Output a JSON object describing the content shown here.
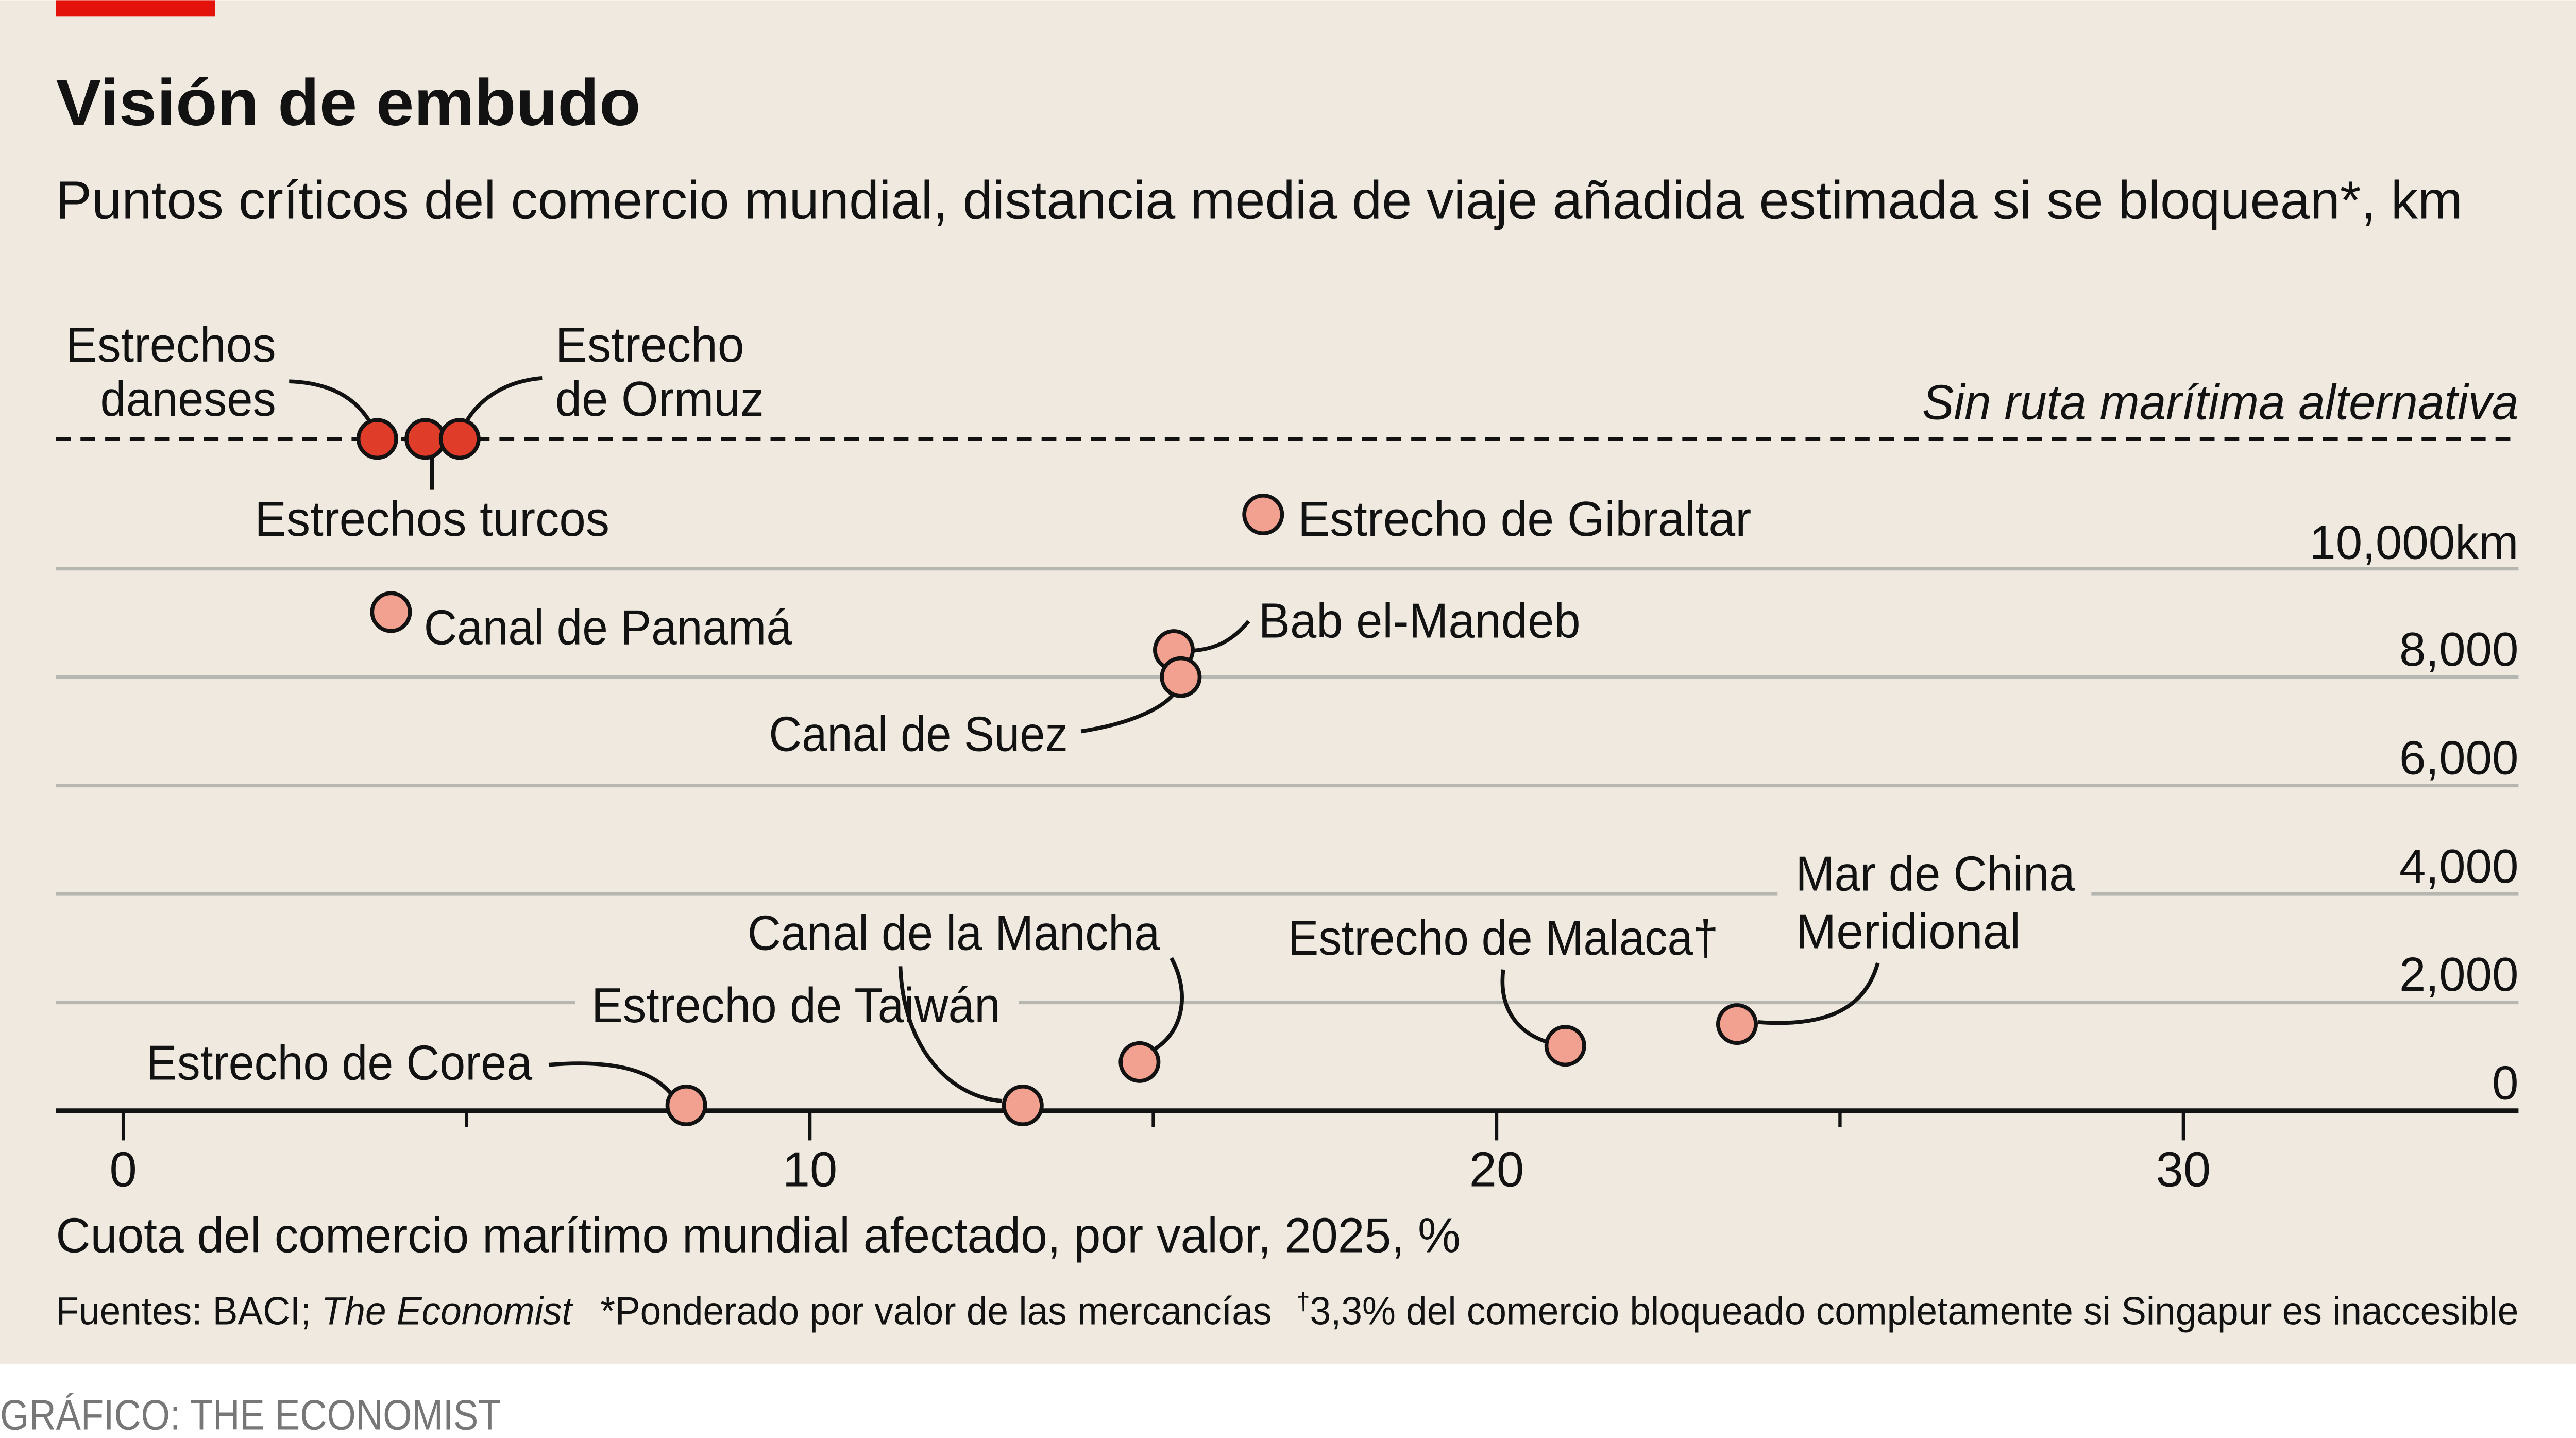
{
  "title": "Visión de embudo",
  "subtitle": "Puntos críticos del comercio mundial, distancia media de viaje añadida estimada si se bloquean*, km",
  "no_alternative_label": "Sin ruta marítima alternativa",
  "sources": {
    "prefix": "Fuentes: BACI; ",
    "publication": "The Economist",
    "note1": "*Ponderado por valor de las mercancías",
    "dagger": "†",
    "note2": "3,3% del comercio bloqueado completamente si Singapur es inaccesible"
  },
  "credit": "GRÁFICO: THE ECONOMIST",
  "colors": {
    "background": "#efe9df",
    "brand_bar": "#e3120b",
    "no_alternative_dot": "#e03c2a",
    "dot": "#f2a08f"
  },
  "chart_data": {
    "type": "scatter",
    "title": "Visión de embudo",
    "xlabel": "Cuota del comercio marítimo mundial afectado, por valor, 2025, %",
    "ylabel": "km",
    "xlim": [
      -1,
      35
    ],
    "ylim": [
      0,
      12000
    ],
    "x_ticks": [
      "0",
      "10",
      "20",
      "30"
    ],
    "y_ticks": [
      "0",
      "2,000",
      "4,000",
      "6,000",
      "8,000",
      "10,000km"
    ],
    "grid": true,
    "points": [
      {
        "label": "Estrechos daneses",
        "label_lines": [
          "Estrechos",
          "daneses"
        ],
        "x": 3.7,
        "y": null,
        "no_alternative": true
      },
      {
        "label": "Estrechos turcos",
        "x": 4.4,
        "y": null,
        "no_alternative": true
      },
      {
        "label": "Estrecho de Ormuz",
        "label_lines": [
          "Estrecho",
          "de Ormuz"
        ],
        "x": 4.9,
        "y": null,
        "no_alternative": true
      },
      {
        "label": "Estrecho de Gibraltar",
        "x": 16.6,
        "y": 11000,
        "no_alternative": false
      },
      {
        "label": "Canal de Panamá",
        "x": 3.9,
        "y": 9200,
        "no_alternative": false
      },
      {
        "label": "Bab el-Mandeb",
        "x": 15.3,
        "y": 8500,
        "no_alternative": false
      },
      {
        "label": "Canal de Suez",
        "x": 15.4,
        "y": 8000,
        "no_alternative": false
      },
      {
        "label": "Estrecho de Corea",
        "x": 8.2,
        "y": 100,
        "no_alternative": false
      },
      {
        "label": "Estrecho de Taiwán",
        "x": 13.1,
        "y": 100,
        "no_alternative": false
      },
      {
        "label": "Canal de la Mancha",
        "x": 14.8,
        "y": 900,
        "no_alternative": false
      },
      {
        "label": "Estrecho de Malaca†",
        "x": 21.0,
        "y": 1200,
        "no_alternative": false
      },
      {
        "label": "Mar de China Meridional",
        "label_lines": [
          "Mar de China",
          "Meridional"
        ],
        "x": 23.5,
        "y": 1600,
        "no_alternative": false
      }
    ]
  }
}
